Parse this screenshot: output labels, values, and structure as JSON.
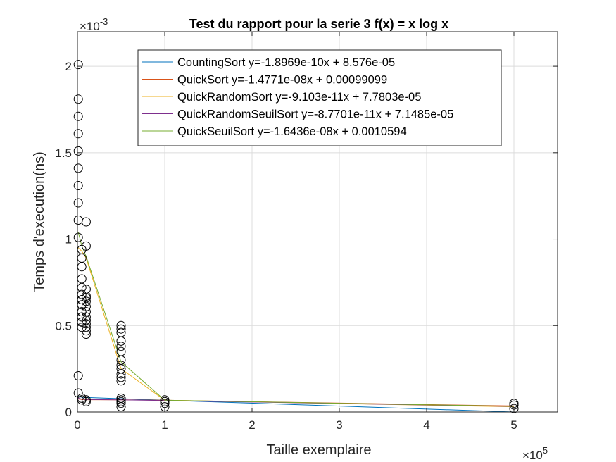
{
  "chart_data": {
    "type": "scatter",
    "title": "Test du rapport pour la serie 3 f(x) = x log x",
    "xlabel": "Taille exemplaire",
    "ylabel": "Temps d'execution(ns)",
    "x_multiplier": "×10",
    "x_exponent": "5",
    "y_multiplier": "×10",
    "y_exponent": "-3",
    "xlim": [
      0,
      550000
    ],
    "ylim": [
      0,
      0.0022
    ],
    "x_ticks": [
      0,
      100000,
      200000,
      300000,
      400000,
      500000
    ],
    "x_tick_labels": [
      "0",
      "1",
      "2",
      "3",
      "4",
      "5"
    ],
    "y_ticks": [
      0,
      0.0005,
      0.001,
      0.0015,
      0.002
    ],
    "y_tick_labels": [
      "0",
      "0.5",
      "1",
      "1.5",
      "2"
    ],
    "grid": true,
    "legend_position": "top-center",
    "marker": "open-circle",
    "marker_color": "#000000",
    "points": [
      [
        1000,
        0.00201
      ],
      [
        1000,
        0.00181
      ],
      [
        1000,
        0.00171
      ],
      [
        1000,
        0.00161
      ],
      [
        1000,
        0.00151
      ],
      [
        1000,
        0.00141
      ],
      [
        1000,
        0.00131
      ],
      [
        1000,
        0.00121
      ],
      [
        1000,
        0.00111
      ],
      [
        1000,
        0.00101
      ],
      [
        1000,
        0.00021
      ],
      [
        1000,
        0.00011
      ],
      [
        5000,
        0.00094
      ],
      [
        5000,
        0.00089
      ],
      [
        5000,
        0.00084
      ],
      [
        5000,
        0.00077
      ],
      [
        5000,
        0.00072
      ],
      [
        5000,
        0.00068
      ],
      [
        5000,
        0.00065
      ],
      [
        5000,
        0.00062
      ],
      [
        5000,
        0.00058
      ],
      [
        5000,
        0.00055
      ],
      [
        5000,
        0.00052
      ],
      [
        5000,
        0.00049
      ],
      [
        5000,
        8e-05
      ],
      [
        5000,
        7e-05
      ],
      [
        10000,
        0.0011
      ],
      [
        10000,
        0.00096
      ],
      [
        10000,
        0.00071
      ],
      [
        10000,
        0.00067
      ],
      [
        10000,
        0.00066
      ],
      [
        10000,
        0.00064
      ],
      [
        10000,
        0.00061
      ],
      [
        10000,
        0.00058
      ],
      [
        10000,
        0.00055
      ],
      [
        10000,
        0.00053
      ],
      [
        10000,
        0.00051
      ],
      [
        10000,
        0.00049
      ],
      [
        10000,
        0.00047
      ],
      [
        10000,
        0.00045
      ],
      [
        10000,
        7e-05
      ],
      [
        10000,
        6e-05
      ],
      [
        50000,
        0.0005
      ],
      [
        50000,
        0.00048
      ],
      [
        50000,
        0.00046
      ],
      [
        50000,
        0.00041
      ],
      [
        50000,
        0.00038
      ],
      [
        50000,
        0.00035
      ],
      [
        50000,
        0.0003
      ],
      [
        50000,
        0.00027
      ],
      [
        50000,
        0.00025
      ],
      [
        50000,
        0.00022
      ],
      [
        50000,
        0.0002
      ],
      [
        50000,
        0.00018
      ],
      [
        50000,
        8e-05
      ],
      [
        50000,
        7e-05
      ],
      [
        50000,
        6e-05
      ],
      [
        50000,
        5e-05
      ],
      [
        50000,
        3e-05
      ],
      [
        100000,
        7e-05
      ],
      [
        100000,
        6e-05
      ],
      [
        100000,
        5e-05
      ],
      [
        100000,
        3e-05
      ],
      [
        500000,
        5e-05
      ],
      [
        500000,
        4e-05
      ],
      [
        500000,
        2e-05
      ]
    ],
    "series": [
      {
        "name": "CountingSort y=-1.8969e-10x + 8.576e-05",
        "color": "#0072BD",
        "x": [
          1000,
          5000,
          10000,
          50000,
          100000,
          500000
        ],
        "y": [
          9e-05,
          8.5e-05,
          8.4e-05,
          7.7e-05,
          6.8e-05,
          0.0
        ]
      },
      {
        "name": "QuickSort y=-1.4771e-08x + 0.00099099",
        "color": "#D95319",
        "x": [
          1000,
          5000,
          10000,
          50000,
          100000,
          500000
        ],
        "y": [
          7.5e-05,
          7.2e-05,
          7.1e-05,
          7e-05,
          6.8e-05,
          3.5e-05
        ]
      },
      {
        "name": "QuickRandomSort y=-9.103e-11x + 7.7803e-05",
        "color": "#EDB120",
        "x": [
          1000,
          5000,
          10000,
          50000,
          100000,
          500000
        ],
        "y": [
          0.00095,
          0.00093,
          0.00089,
          0.00025,
          6.8e-05,
          3e-05
        ]
      },
      {
        "name": "QuickRandomSeuilSort y=-8.7701e-11x + 7.1485e-05",
        "color": "#7E2F8E",
        "x": [
          1000,
          5000,
          10000,
          50000,
          100000,
          500000
        ],
        "y": [
          8e-05,
          7.5e-05,
          7.2e-05,
          7e-05,
          6.6e-05,
          3.2e-05
        ]
      },
      {
        "name": "QuickSeuilSort y=-1.6436e-08x + 0.0010594",
        "color": "#77AC30",
        "x": [
          1000,
          5000,
          10000,
          50000,
          100000,
          500000
        ],
        "y": [
          0.00104,
          0.00096,
          0.0009,
          0.00029,
          6.8e-05,
          3.3e-05
        ]
      }
    ]
  }
}
